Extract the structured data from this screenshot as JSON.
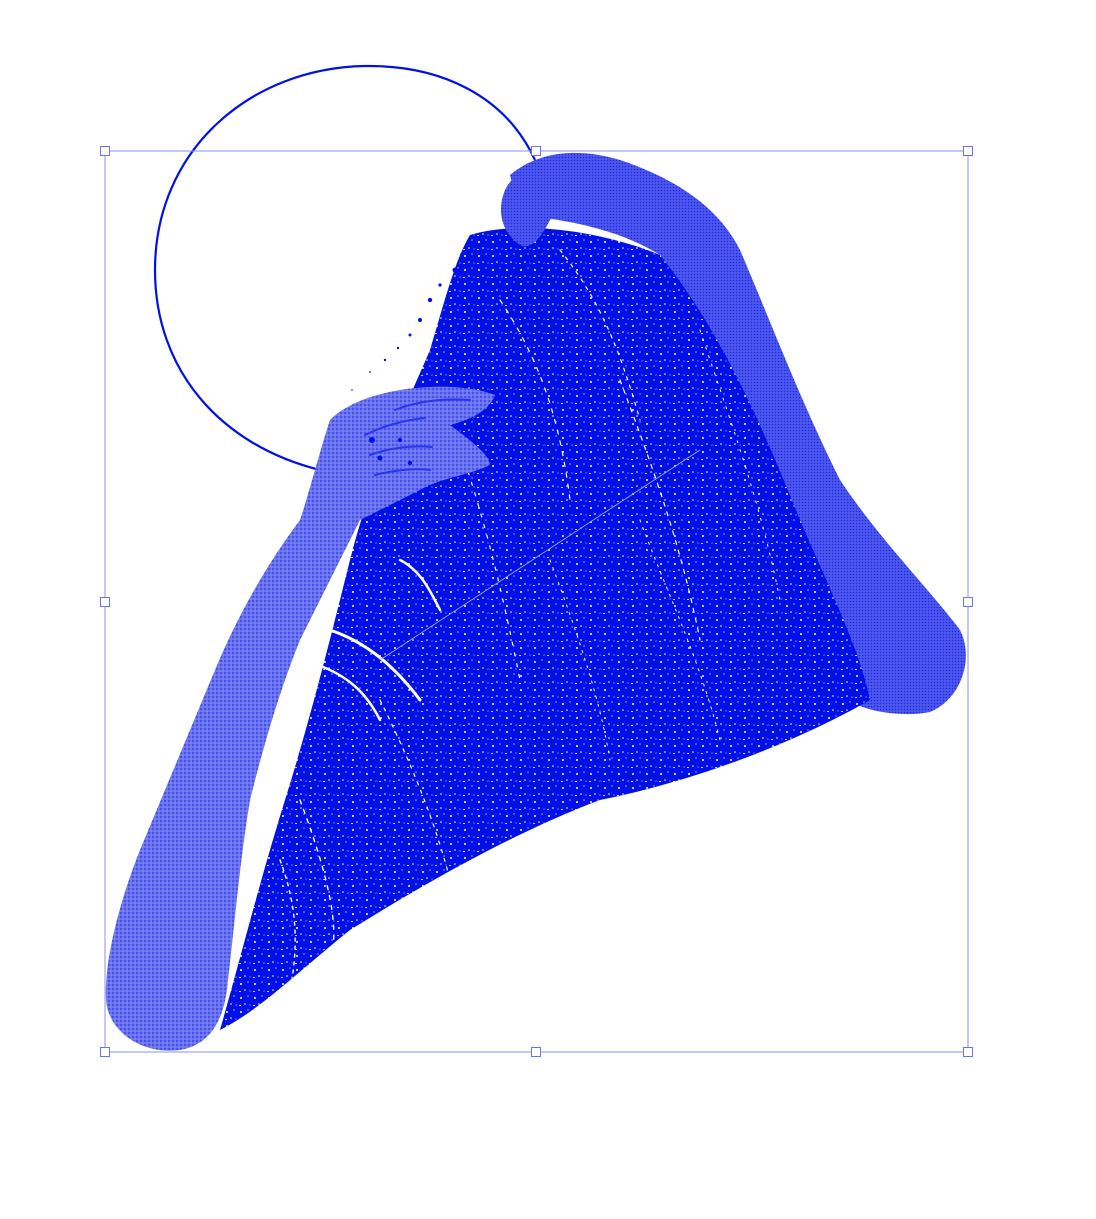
{
  "artboard": {
    "background": "#ffffff"
  },
  "artwork": {
    "subject": "figure-with-raised-arms-and-draped-cloth",
    "ink_color": "#0010e6",
    "light_tint": "#7a82f2",
    "mid_tint": "#5c66ee",
    "circle_stroke": "#0010e6"
  },
  "selection": {
    "selected": true,
    "box_color": "#8890ee",
    "handle_fill": "#ffffff",
    "handle_count": 8,
    "handle_names": [
      "top-left",
      "top-center",
      "top-right",
      "middle-left",
      "middle-right",
      "bottom-left",
      "bottom-center",
      "bottom-right"
    ]
  }
}
